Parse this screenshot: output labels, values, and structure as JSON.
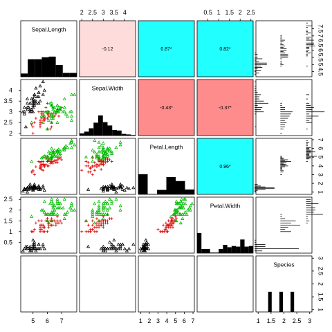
{
  "chart_data": {
    "type": "scatter",
    "variables": [
      "Sepal.Length",
      "Sepal.Width",
      "Petal.Length",
      "Petal.Width",
      "Species"
    ],
    "axis_ranges": {
      "Sepal.Length": [
        4.3,
        7.9
      ],
      "Sepal.Width": [
        2.0,
        4.4
      ],
      "Petal.Length": [
        1.0,
        6.9
      ],
      "Petal.Width": [
        0.1,
        2.5
      ],
      "Species": [
        1,
        3
      ]
    },
    "ticks": {
      "top": {
        "2": [
          "2",
          "2.5",
          "3",
          "3.5",
          "4"
        ],
        "4": [
          "0.5",
          "1",
          "1.5",
          "2",
          "2.5"
        ]
      },
      "bottom": {
        "1": [
          "5",
          "6",
          "7"
        ],
        "3": [
          "1",
          "2",
          "3",
          "4",
          "5",
          "6",
          "7"
        ],
        "5": [
          "1",
          "1.5",
          "2",
          "2.5",
          "3"
        ]
      },
      "left": {
        "2": [
          "2",
          "2.5",
          "3",
          "3.5",
          "4"
        ],
        "4": [
          "0.5",
          "1",
          "1.5",
          "2",
          "2.5"
        ]
      },
      "right": {
        "1": [
          "4.5",
          "5",
          "5.5",
          "6",
          "6.5",
          "7",
          "7.5"
        ],
        "3": [
          "1",
          "2",
          "3",
          "4",
          "5",
          "6",
          "7"
        ],
        "5": [
          "1",
          "1.5",
          "2",
          "2.5",
          "3"
        ]
      }
    },
    "correlations": [
      {
        "row": 1,
        "col": 2,
        "label": "-0.12",
        "value": -0.12,
        "color": "#ffdcdc"
      },
      {
        "row": 1,
        "col": 3,
        "label": "0.87*",
        "value": 0.87,
        "color": "#22ffff"
      },
      {
        "row": 1,
        "col": 4,
        "label": "0.82*",
        "value": 0.82,
        "color": "#22ffff"
      },
      {
        "row": 2,
        "col": 3,
        "label": "-0.43*",
        "value": -0.43,
        "color": "#ff8c8c"
      },
      {
        "row": 2,
        "col": 4,
        "label": "-0.37*",
        "value": -0.37,
        "color": "#ff8c8c"
      },
      {
        "row": 3,
        "col": 4,
        "label": "0.96*",
        "value": 0.96,
        "color": "#22ffff"
      }
    ],
    "histograms": {
      "Sepal.Length": {
        "edges": [
          4,
          4.5,
          5,
          5.5,
          6,
          6.5,
          7,
          7.5,
          8
        ],
        "counts": [
          5,
          27,
          27,
          30,
          31,
          18,
          6,
          6
        ]
      },
      "Sepal.Width": {
        "edges": [
          2,
          2.2,
          2.4,
          2.6,
          2.8,
          3,
          3.2,
          3.4,
          3.6,
          3.8,
          4,
          4.2,
          4.4
        ],
        "counts": [
          4,
          7,
          13,
          23,
          36,
          24,
          18,
          10,
          9,
          3,
          2,
          1
        ]
      },
      "Petal.Length": {
        "edges": [
          1,
          2,
          3,
          4,
          5,
          6,
          7
        ],
        "counts": [
          50,
          1,
          11,
          43,
          33,
          12
        ]
      },
      "Petal.Width": {
        "edges": [
          0,
          0.2,
          0.4,
          0.6,
          0.8,
          1,
          1.2,
          1.4,
          1.6,
          1.8,
          2,
          2.2,
          2.4,
          2.6
        ],
        "counts": [
          34,
          7,
          7,
          1,
          1,
          7,
          14,
          10,
          12,
          11,
          23,
          11,
          12
        ]
      },
      "Species": {
        "edges": [
          1,
          1.2,
          1.4,
          1.6,
          1.8,
          2,
          2.2,
          2.4,
          2.6,
          2.8,
          3
        ],
        "counts": [
          0,
          0,
          50,
          0,
          50,
          0,
          50,
          0,
          0,
          0
        ]
      }
    },
    "group_colors": {
      "setosa": "#000000",
      "versicolor": "#dd0000",
      "virginica": "#00bb00"
    },
    "group_symbols": {
      "setosa": "triangle",
      "versicolor": "plus",
      "virginica": "triangle"
    },
    "points": {
      "setosa": {
        "Sepal.Length": [
          5.1,
          4.9,
          4.7,
          4.6,
          5.0,
          5.4,
          4.6,
          5.0,
          4.4,
          4.9,
          5.4,
          4.8,
          4.8,
          4.3,
          5.8,
          5.7,
          5.4,
          5.1,
          5.7,
          5.1,
          5.4,
          5.1,
          4.6,
          5.1,
          4.8,
          5.0,
          5.0,
          5.2,
          5.2,
          4.7,
          4.8,
          5.4,
          5.2,
          5.5,
          4.9,
          5.0,
          5.5,
          4.9,
          4.4,
          5.1,
          5.0,
          4.5,
          4.4,
          5.0,
          5.1,
          4.8,
          5.1,
          4.6,
          5.3,
          5.0
        ],
        "Sepal.Width": [
          3.5,
          3.0,
          3.2,
          3.1,
          3.6,
          3.9,
          3.4,
          3.4,
          2.9,
          3.1,
          3.7,
          3.4,
          3.0,
          3.0,
          4.0,
          4.4,
          3.9,
          3.5,
          3.8,
          3.8,
          3.4,
          3.7,
          3.6,
          3.3,
          3.4,
          3.0,
          3.4,
          3.5,
          3.4,
          3.2,
          3.1,
          3.4,
          4.1,
          4.2,
          3.1,
          3.2,
          3.5,
          3.6,
          3.0,
          3.4,
          3.5,
          2.3,
          3.2,
          3.5,
          3.8,
          3.0,
          3.8,
          3.2,
          3.7,
          3.3
        ],
        "Petal.Length": [
          1.4,
          1.4,
          1.3,
          1.5,
          1.4,
          1.7,
          1.4,
          1.5,
          1.4,
          1.5,
          1.5,
          1.6,
          1.4,
          1.1,
          1.2,
          1.5,
          1.3,
          1.4,
          1.7,
          1.5,
          1.7,
          1.5,
          1.0,
          1.7,
          1.9,
          1.6,
          1.6,
          1.5,
          1.4,
          1.6,
          1.6,
          1.5,
          1.5,
          1.4,
          1.5,
          1.2,
          1.3,
          1.4,
          1.3,
          1.5,
          1.3,
          1.3,
          1.3,
          1.6,
          1.9,
          1.4,
          1.6,
          1.4,
          1.5,
          1.4
        ],
        "Petal.Width": [
          0.2,
          0.2,
          0.2,
          0.2,
          0.2,
          0.4,
          0.3,
          0.2,
          0.2,
          0.1,
          0.2,
          0.2,
          0.1,
          0.1,
          0.2,
          0.4,
          0.4,
          0.3,
          0.3,
          0.3,
          0.2,
          0.4,
          0.2,
          0.5,
          0.2,
          0.2,
          0.4,
          0.2,
          0.2,
          0.2,
          0.2,
          0.4,
          0.1,
          0.2,
          0.2,
          0.2,
          0.2,
          0.1,
          0.2,
          0.2,
          0.3,
          0.3,
          0.2,
          0.6,
          0.4,
          0.3,
          0.2,
          0.2,
          0.2,
          0.2
        ],
        "Species": 1
      },
      "versicolor": {
        "Sepal.Length": [
          7.0,
          6.4,
          6.9,
          5.5,
          6.5,
          5.7,
          6.3,
          4.9,
          6.6,
          5.2,
          5.0,
          5.9,
          6.0,
          6.1,
          5.6,
          6.7,
          5.6,
          5.8,
          6.2,
          5.6,
          5.9,
          6.1,
          6.3,
          6.1,
          6.4,
          6.6,
          6.8,
          6.7,
          6.0,
          5.7,
          5.5,
          5.5,
          5.8,
          6.0,
          5.4,
          6.0,
          6.7,
          6.3,
          5.6,
          5.5,
          5.5,
          6.1,
          5.8,
          5.0,
          5.6,
          5.7,
          5.7,
          6.2,
          5.1,
          5.7
        ],
        "Sepal.Width": [
          3.2,
          3.2,
          3.1,
          2.3,
          2.8,
          2.8,
          3.3,
          2.4,
          2.9,
          2.7,
          2.0,
          3.0,
          2.2,
          2.9,
          2.9,
          3.1,
          3.0,
          2.7,
          2.2,
          2.5,
          3.2,
          2.8,
          2.5,
          2.8,
          2.9,
          3.0,
          2.8,
          3.0,
          2.9,
          2.6,
          2.4,
          2.4,
          2.7,
          2.7,
          3.0,
          3.4,
          3.1,
          2.3,
          3.0,
          2.5,
          2.6,
          3.0,
          2.6,
          2.3,
          2.7,
          3.0,
          2.9,
          2.9,
          2.5,
          2.8
        ],
        "Petal.Length": [
          4.7,
          4.5,
          4.9,
          4.0,
          4.6,
          4.5,
          4.7,
          3.3,
          4.6,
          3.9,
          3.5,
          4.2,
          4.0,
          4.7,
          3.6,
          4.4,
          4.5,
          4.1,
          4.5,
          3.9,
          4.8,
          4.0,
          4.9,
          4.7,
          4.3,
          4.4,
          4.8,
          5.0,
          4.5,
          3.5,
          3.8,
          3.7,
          3.9,
          5.1,
          4.5,
          4.5,
          4.7,
          4.4,
          4.1,
          4.0,
          4.4,
          4.6,
          4.0,
          3.3,
          4.2,
          4.2,
          4.2,
          4.3,
          3.0,
          4.1
        ],
        "Petal.Width": [
          1.4,
          1.5,
          1.5,
          1.3,
          1.5,
          1.3,
          1.6,
          1.0,
          1.3,
          1.4,
          1.0,
          1.5,
          1.0,
          1.4,
          1.3,
          1.4,
          1.5,
          1.0,
          1.5,
          1.1,
          1.8,
          1.3,
          1.5,
          1.2,
          1.3,
          1.4,
          1.4,
          1.7,
          1.5,
          1.0,
          1.1,
          1.0,
          1.2,
          1.6,
          1.5,
          1.6,
          1.5,
          1.3,
          1.3,
          1.3,
          1.2,
          1.4,
          1.2,
          1.0,
          1.3,
          1.2,
          1.3,
          1.3,
          1.1,
          1.3
        ],
        "Species": 2
      },
      "virginica": {
        "Sepal.Length": [
          6.3,
          5.8,
          7.1,
          6.3,
          6.5,
          7.6,
          4.9,
          7.3,
          6.7,
          7.2,
          6.5,
          6.4,
          6.8,
          5.7,
          5.8,
          6.4,
          6.5,
          7.7,
          7.7,
          6.0,
          6.9,
          5.6,
          7.7,
          6.3,
          6.7,
          7.2,
          6.2,
          6.1,
          6.4,
          7.2,
          7.4,
          7.9,
          6.4,
          6.3,
          6.1,
          7.7,
          6.3,
          6.4,
          6.0,
          6.9,
          6.7,
          6.9,
          5.8,
          6.8,
          6.7,
          6.7,
          6.3,
          6.5,
          6.2,
          5.9
        ],
        "Sepal.Width": [
          3.3,
          2.7,
          3.0,
          2.9,
          3.0,
          3.0,
          2.5,
          2.9,
          2.5,
          3.6,
          3.2,
          2.7,
          3.0,
          2.5,
          2.8,
          3.2,
          3.0,
          3.8,
          2.6,
          2.2,
          3.2,
          2.8,
          2.8,
          2.7,
          3.3,
          3.2,
          2.8,
          3.0,
          2.8,
          3.0,
          2.8,
          3.8,
          2.8,
          2.8,
          2.6,
          3.0,
          3.4,
          3.1,
          3.0,
          3.1,
          3.1,
          3.1,
          2.7,
          3.2,
          3.3,
          3.0,
          2.5,
          3.0,
          3.4,
          3.0
        ],
        "Petal.Length": [
          6.0,
          5.1,
          5.9,
          5.6,
          5.8,
          6.6,
          4.5,
          6.3,
          5.8,
          6.1,
          5.1,
          5.3,
          5.5,
          5.0,
          5.1,
          5.3,
          5.5,
          6.7,
          6.9,
          5.0,
          5.7,
          4.9,
          6.7,
          4.9,
          5.7,
          6.0,
          4.8,
          4.9,
          5.6,
          5.8,
          6.1,
          6.4,
          5.6,
          5.1,
          5.6,
          6.1,
          5.6,
          5.5,
          4.8,
          5.4,
          5.6,
          5.1,
          5.1,
          5.9,
          5.7,
          5.2,
          5.0,
          5.2,
          5.4,
          5.1
        ],
        "Petal.Width": [
          2.5,
          1.9,
          2.1,
          1.8,
          2.2,
          2.1,
          1.7,
          1.8,
          1.8,
          2.5,
          2.0,
          1.9,
          2.1,
          2.0,
          2.4,
          2.3,
          1.8,
          2.2,
          2.3,
          1.5,
          2.3,
          2.0,
          2.0,
          1.8,
          2.1,
          1.8,
          1.8,
          1.8,
          2.1,
          1.6,
          1.9,
          2.0,
          2.2,
          1.5,
          1.4,
          2.3,
          2.4,
          1.8,
          1.8,
          2.1,
          2.4,
          2.3,
          1.9,
          2.3,
          2.5,
          2.3,
          1.9,
          2.0,
          2.3,
          1.8
        ],
        "Species": 3
      }
    }
  }
}
